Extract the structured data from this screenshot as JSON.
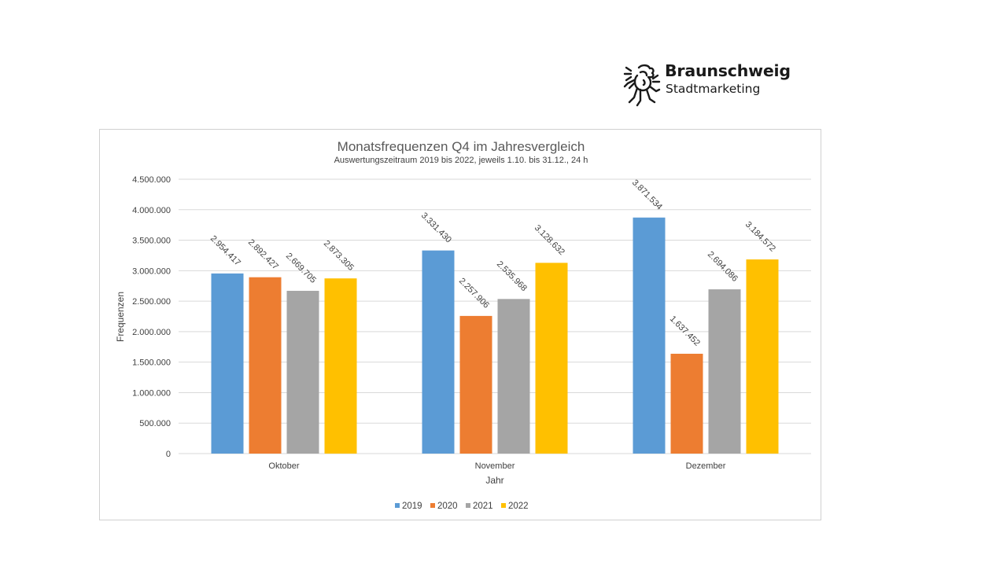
{
  "logo": {
    "name": "Braunschweig",
    "subtitle": "Stadtmarketing"
  },
  "chart_data": {
    "type": "bar",
    "title": "Monatsfrequenzen  Q4 im Jahresvergleich",
    "subtitle": "Auswertungszeitraum 2019 bis 2022, jeweils 1.10. bis 31.12., 24 h",
    "xlabel": "Jahr",
    "ylabel": "Frequenzen",
    "categories": [
      "Oktober",
      "November",
      "Dezember"
    ],
    "ylim": [
      0,
      4500000
    ],
    "yticks": [
      0,
      500000,
      1000000,
      1500000,
      2000000,
      2500000,
      3000000,
      3500000,
      4000000,
      4500000
    ],
    "ytick_labels": [
      "0",
      "500.000",
      "1.000.000",
      "1.500.000",
      "2.000.000",
      "2.500.000",
      "3.000.000",
      "3.500.000",
      "4.000.000",
      "4.500.000"
    ],
    "grid": true,
    "legend": "bottom",
    "series": [
      {
        "name": "2019",
        "color": "#5B9BD5",
        "values": [
          2954417,
          3331430,
          3871534
        ],
        "labels": [
          "2.954.417",
          "3.331.430",
          "3.871.534"
        ]
      },
      {
        "name": "2020",
        "color": "#ED7D31",
        "values": [
          2892427,
          2257906,
          1637452
        ],
        "labels": [
          "2.892.427",
          "2.257.906",
          "1.637.452"
        ]
      },
      {
        "name": "2021",
        "color": "#A5A5A5",
        "values": [
          2669705,
          2535968,
          2694086
        ],
        "labels": [
          "2.669.705",
          "2.535.968",
          "2.694.086"
        ]
      },
      {
        "name": "2022",
        "color": "#FFC000",
        "values": [
          2873305,
          3128632,
          3184572
        ],
        "labels": [
          "2.873.305",
          "3.128.632",
          "3.184.572"
        ]
      }
    ]
  }
}
